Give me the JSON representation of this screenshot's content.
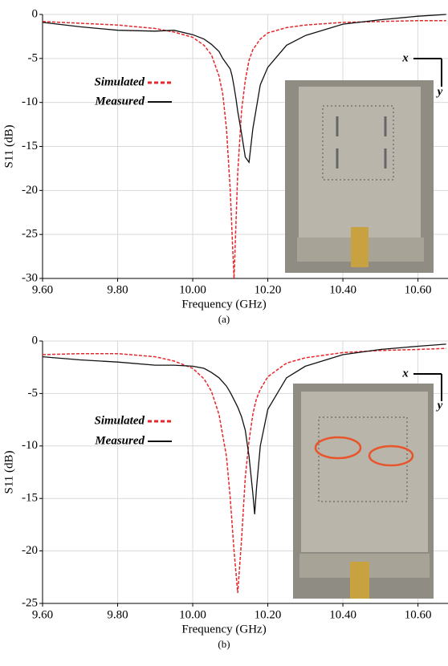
{
  "chart_data": [
    {
      "type": "line",
      "x_label": "Frequency (GHz)",
      "y_label": "S11 (dB)",
      "caption": "(a)",
      "xlim": [
        9.6,
        10.68
      ],
      "ylim": [
        -30,
        0
      ],
      "xticks": [
        {
          "value": 9.6,
          "label": "9.60"
        },
        {
          "value": 9.8,
          "label": "9.80"
        },
        {
          "value": 10.0,
          "label": "10.00"
        },
        {
          "value": 10.2,
          "label": "10.20"
        },
        {
          "value": 10.4,
          "label": "10.40"
        },
        {
          "value": 10.6,
          "label": "10.60"
        }
      ],
      "yticks": [
        0,
        -5,
        -10,
        -15,
        -20,
        -25,
        -30
      ],
      "grid": true,
      "x": [
        9.6,
        9.7,
        9.8,
        9.9,
        9.95,
        10.0,
        10.03,
        10.05,
        10.07,
        10.08,
        10.09,
        10.1,
        10.105,
        10.11,
        10.115,
        10.12,
        10.13,
        10.14,
        10.15,
        10.16,
        10.18,
        10.2,
        10.25,
        10.3,
        10.4,
        10.5,
        10.6,
        10.675
      ],
      "series": [
        {
          "name": "Simulated",
          "color": "#e8262b",
          "dash": true,
          "values": [
            -0.8,
            -1.0,
            -1.2,
            -1.6,
            -2.0,
            -2.6,
            -3.5,
            -4.6,
            -7,
            -9,
            -13,
            -20,
            -25,
            -30,
            -24,
            -18,
            -11,
            -7.5,
            -5.2,
            -4,
            -2.8,
            -2.1,
            -1.5,
            -1.2,
            -0.9,
            -0.8,
            -0.7,
            -0.7
          ]
        },
        {
          "name": "Measured",
          "color": "#111111",
          "dash": false,
          "values": [
            -0.9,
            -1.4,
            -1.8,
            -1.9,
            -1.8,
            -2.3,
            -2.8,
            -3.4,
            -4.2,
            -5,
            -5.6,
            -6.2,
            -7,
            -8.2,
            -9.5,
            -11,
            -13.5,
            -16.2,
            -16.8,
            -13,
            -8,
            -6,
            -3.5,
            -2.4,
            -1.1,
            -0.6,
            -0.2,
            0
          ]
        }
      ],
      "annotations": [
        "x",
        "y"
      ]
    },
    {
      "type": "line",
      "x_label": "Frequency (GHz)",
      "y_label": "S11 (dB)",
      "caption": "(b)",
      "xlim": [
        9.6,
        10.68
      ],
      "ylim": [
        -25,
        0
      ],
      "xticks": [
        {
          "value": 9.6,
          "label": "9.60"
        },
        {
          "value": 9.8,
          "label": "9.80"
        },
        {
          "value": 10.0,
          "label": "10.00"
        },
        {
          "value": 10.2,
          "label": "10.20"
        },
        {
          "value": 10.4,
          "label": "10.40"
        },
        {
          "value": 10.6,
          "label": "10.60"
        }
      ],
      "yticks": [
        0,
        -5,
        -10,
        -15,
        -20,
        -25
      ],
      "grid": true,
      "x": [
        9.6,
        9.7,
        9.8,
        9.9,
        9.95,
        10.0,
        10.03,
        10.05,
        10.07,
        10.09,
        10.1,
        10.11,
        10.12,
        10.13,
        10.14,
        10.15,
        10.16,
        10.165,
        10.17,
        10.18,
        10.2,
        10.25,
        10.3,
        10.4,
        10.5,
        10.6,
        10.675
      ],
      "series": [
        {
          "name": "Simulated",
          "color": "#e8262b",
          "dash": true,
          "values": [
            -1.3,
            -1.2,
            -1.2,
            -1.5,
            -1.9,
            -2.6,
            -3.6,
            -4.8,
            -7,
            -11,
            -15,
            -20,
            -24,
            -19,
            -13,
            -9.5,
            -7,
            -6.2,
            -5.5,
            -4.6,
            -3.4,
            -2.1,
            -1.6,
            -1.1,
            -0.9,
            -0.8,
            -0.7
          ]
        },
        {
          "name": "Measured",
          "color": "#111111",
          "dash": false,
          "values": [
            -1.5,
            -1.8,
            -2.0,
            -2.3,
            -2.3,
            -2.4,
            -2.6,
            -3.0,
            -3.5,
            -4.3,
            -4.9,
            -5.6,
            -6.3,
            -7.2,
            -8.5,
            -11,
            -14.5,
            -16.5,
            -14,
            -10,
            -6.5,
            -3.5,
            -2.4,
            -1.3,
            -0.8,
            -0.5,
            -0.3
          ]
        }
      ],
      "annotations": [
        "x",
        "y"
      ]
    }
  ]
}
